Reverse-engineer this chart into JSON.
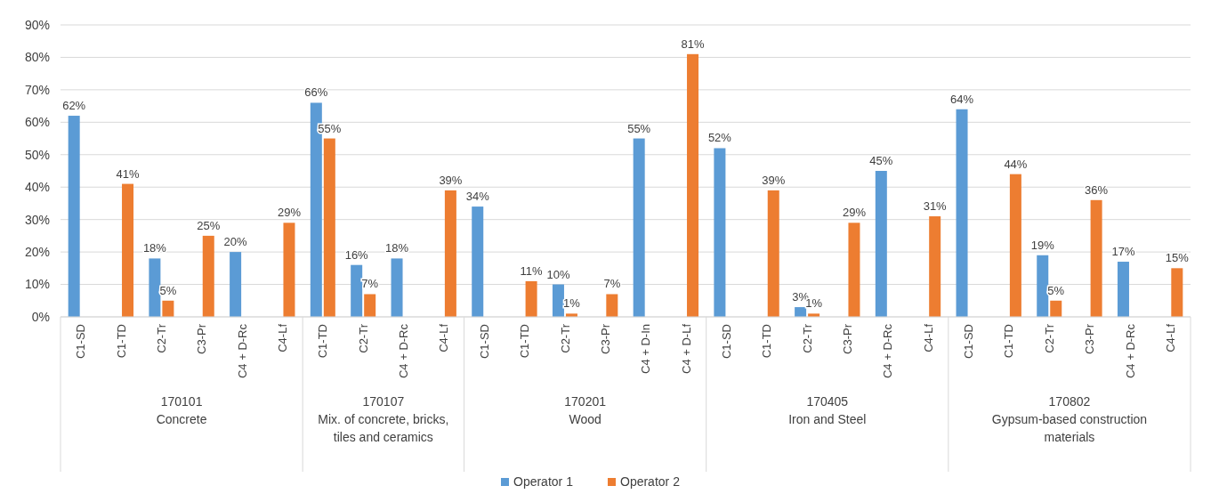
{
  "chart_data": {
    "type": "bar",
    "categories": [
      "C1-SD",
      "C1-TD",
      "C2-Tr",
      "C3-Pr",
      "C4 + D-Rc",
      "C4-Lf",
      "C1-TD",
      "C2-Tr",
      "C4 + D-Rc",
      "C4-Lf",
      "C1-SD",
      "C1-TD",
      "C2-Tr",
      "C3-Pr",
      "C4 + D-In",
      "C4 + D-Lf",
      "C1-SD",
      "C1-TD",
      "C2-Tr",
      "C3-Pr",
      "C4 + D-Rc",
      "C4-Lf",
      "C1-SD",
      "C1-TD",
      "C2-Tr",
      "C3-Pr",
      "C4 + D-Rc",
      "C4-Lf"
    ],
    "series": [
      {
        "name": "Operator 1",
        "color": "#5b9bd5",
        "values": [
          62,
          null,
          18,
          null,
          20,
          null,
          66,
          16,
          18,
          null,
          34,
          null,
          10,
          null,
          55,
          null,
          52,
          null,
          3,
          null,
          45,
          null,
          64,
          null,
          19,
          null,
          17,
          null
        ],
        "value_labels": [
          "62%",
          null,
          "18%",
          null,
          "20%",
          null,
          "66%",
          "16%",
          "18%",
          null,
          "34%",
          null,
          "10%",
          null,
          "55%",
          null,
          "52%",
          null,
          "3%",
          null,
          "45%",
          null,
          "64%",
          null,
          "19%",
          null,
          "17%",
          null
        ]
      },
      {
        "name": "Operator 2",
        "color": "#ed7d31",
        "values": [
          null,
          41,
          5,
          25,
          null,
          29,
          55,
          7,
          null,
          39,
          null,
          11,
          1,
          7,
          null,
          81,
          null,
          39,
          1,
          29,
          null,
          31,
          null,
          44,
          5,
          36,
          null,
          15
        ],
        "value_labels": [
          null,
          "41%",
          "5%",
          "25%",
          null,
          "29%",
          "55%",
          "7%",
          null,
          "39%",
          null,
          "11%",
          "1%",
          "7%",
          null,
          "81%",
          null,
          "39%",
          "1%",
          "29%",
          null,
          "31%",
          null,
          "44%",
          "5%",
          "36%",
          null,
          "15%"
        ]
      }
    ],
    "ylim": [
      0,
      90
    ],
    "yticks": [
      {
        "value": 0,
        "label": "0%"
      },
      {
        "value": 10,
        "label": "10%"
      },
      {
        "value": 20,
        "label": "20%"
      },
      {
        "value": 30,
        "label": "30%"
      },
      {
        "value": 40,
        "label": "40%"
      },
      {
        "value": 50,
        "label": "50%"
      },
      {
        "value": 60,
        "label": "60%"
      },
      {
        "value": 70,
        "label": "70%"
      },
      {
        "value": 80,
        "label": "80%"
      },
      {
        "value": 90,
        "label": "90%"
      }
    ],
    "grid": "y",
    "legend": "bottom",
    "annotations": [
      "170101\nConcrete",
      "170107\nMix. of concrete, bricks,\ntiles and ceramics",
      "170201\nWood",
      "170405\nIron and Steel",
      "170802\nGypsum-based construction\nmaterials"
    ]
  }
}
